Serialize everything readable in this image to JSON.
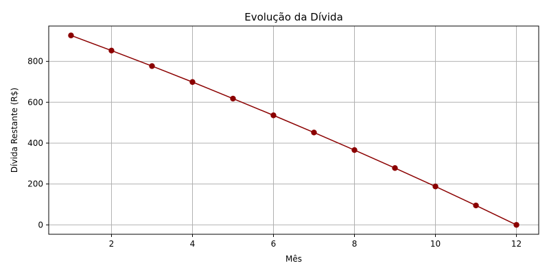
{
  "chart_data": {
    "type": "line",
    "title": "Evolução da Dívida",
    "xlabel": "Mês",
    "ylabel": "Dívida Restante (R$)",
    "xlim": [
      0.45,
      12.55
    ],
    "ylim": [
      -46,
      973
    ],
    "xticks": [
      2,
      4,
      6,
      8,
      10,
      12
    ],
    "yticks": [
      0,
      200,
      400,
      600,
      800
    ],
    "grid": true,
    "series": [
      {
        "color": "#8b0000",
        "marker": "circle",
        "x": [
          1,
          2,
          3,
          4,
          5,
          6,
          7,
          8,
          9,
          10,
          11,
          12
        ],
        "y": [
          927,
          853,
          777,
          699,
          618,
          536,
          452,
          366,
          278,
          188,
          95,
          0
        ]
      }
    ]
  }
}
